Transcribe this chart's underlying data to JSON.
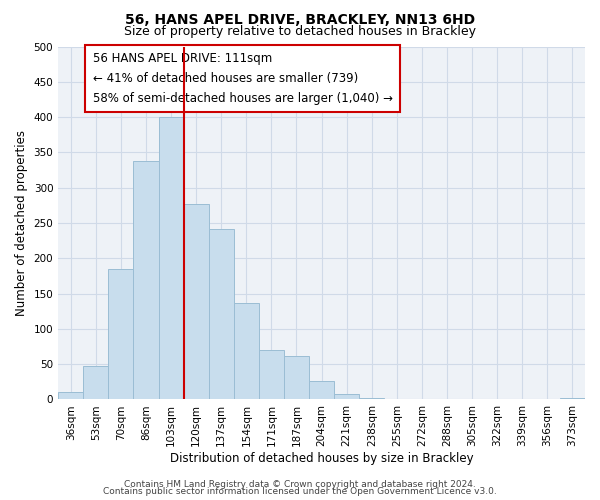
{
  "title": "56, HANS APEL DRIVE, BRACKLEY, NN13 6HD",
  "subtitle": "Size of property relative to detached houses in Brackley",
  "xlabel": "Distribution of detached houses by size in Brackley",
  "ylabel": "Number of detached properties",
  "bar_labels": [
    "36sqm",
    "53sqm",
    "70sqm",
    "86sqm",
    "103sqm",
    "120sqm",
    "137sqm",
    "154sqm",
    "171sqm",
    "187sqm",
    "204sqm",
    "221sqm",
    "238sqm",
    "255sqm",
    "272sqm",
    "288sqm",
    "305sqm",
    "322sqm",
    "339sqm",
    "356sqm",
    "373sqm"
  ],
  "bar_values": [
    10,
    47,
    185,
    338,
    400,
    277,
    242,
    137,
    70,
    62,
    26,
    8,
    2,
    0,
    0,
    0,
    0,
    0,
    0,
    0,
    2
  ],
  "bar_color": "#c8dded",
  "bar_edge_color": "#9bbdd4",
  "vline_color": "#cc0000",
  "ylim": [
    0,
    500
  ],
  "yticks": [
    0,
    50,
    100,
    150,
    200,
    250,
    300,
    350,
    400,
    450,
    500
  ],
  "annotation_line1": "56 HANS APEL DRIVE: 111sqm",
  "annotation_line2": "← 41% of detached houses are smaller (739)",
  "annotation_line3": "58% of semi-detached houses are larger (1,040) →",
  "footer_line1": "Contains HM Land Registry data © Crown copyright and database right 2024.",
  "footer_line2": "Contains public sector information licensed under the Open Government Licence v3.0.",
  "title_fontsize": 10,
  "subtitle_fontsize": 9,
  "axis_label_fontsize": 8.5,
  "tick_fontsize": 7.5,
  "annotation_fontsize": 8.5,
  "footer_fontsize": 6.5,
  "bg_color": "#eef2f7",
  "grid_color": "#d0dae8"
}
